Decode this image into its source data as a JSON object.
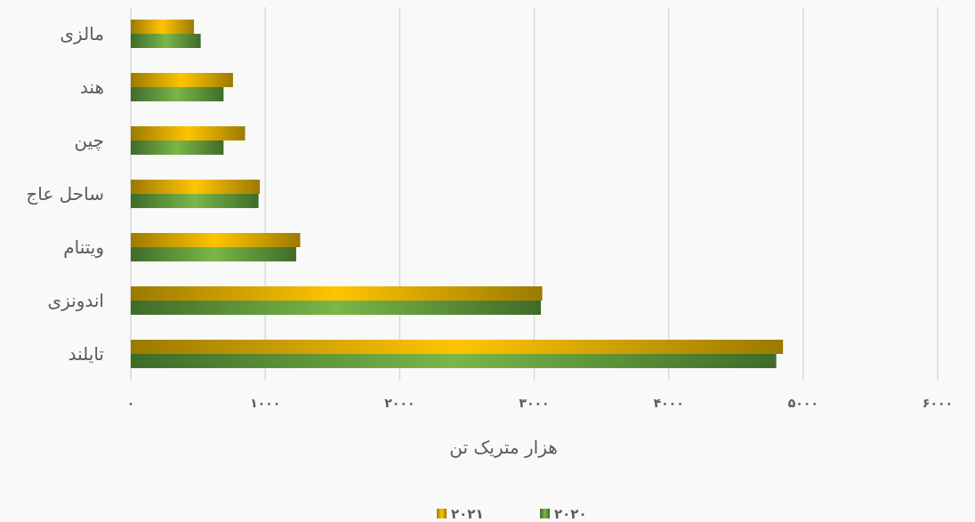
{
  "colors": {
    "series_2021": [
      "#9c7a00",
      "#ffc400",
      "#9c7a00"
    ],
    "series_2020": [
      "#3f6b2a",
      "#7ab648",
      "#3f6b2a"
    ],
    "grid": "#d9d9d9",
    "text": "#595959"
  },
  "chart_data": {
    "type": "bar",
    "orientation": "horizontal",
    "categories": [
      "مالزی",
      "هند",
      "چین",
      "ساحل عاج",
      "ویتنام",
      "اندونزی",
      "تایلند"
    ],
    "series": [
      {
        "name": "۲۰۲۱",
        "values": [
          470,
          760,
          850,
          960,
          1260,
          3060,
          4850
        ]
      },
      {
        "name": "۲۰۲۰",
        "values": [
          520,
          690,
          690,
          950,
          1230,
          3050,
          4800
        ]
      }
    ],
    "xlabel": "هزار متریک تن",
    "ylabel": "",
    "xlim": [
      0,
      6000
    ],
    "xticks": [
      0,
      1000,
      2000,
      3000,
      4000,
      5000,
      6000
    ],
    "xtick_labels": [
      "۰",
      "۱۰۰۰",
      "۲۰۰۰",
      "۳۰۰۰",
      "۴۰۰۰",
      "۵۰۰۰",
      "۶۰۰۰"
    ],
    "grid": "vertical",
    "legend_position": "bottom"
  }
}
